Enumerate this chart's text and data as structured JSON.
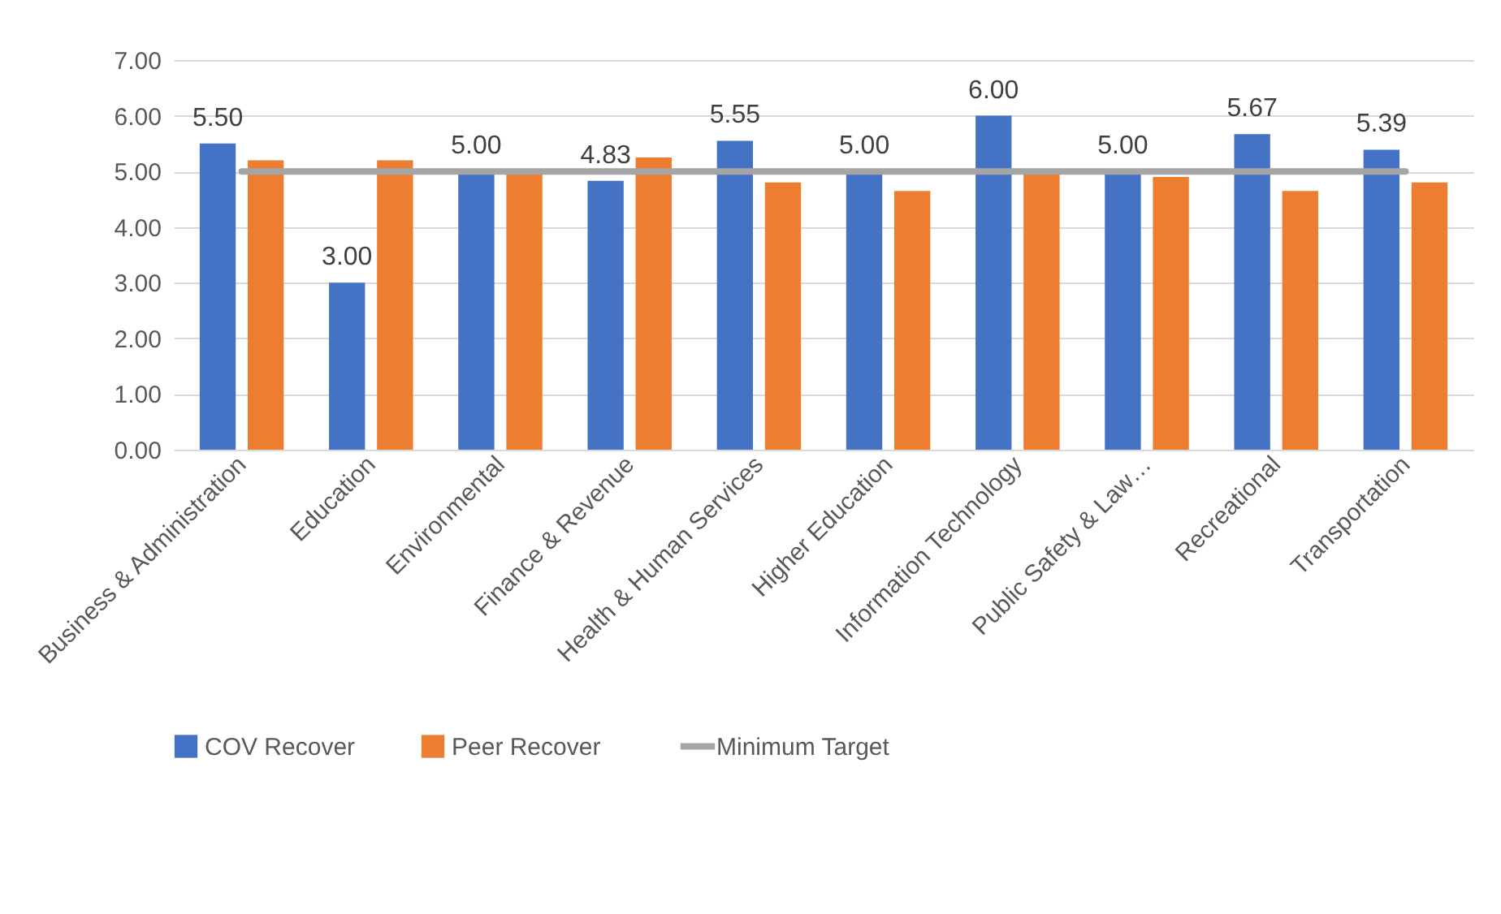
{
  "chart_data": {
    "type": "bar",
    "categories": [
      "Business & Administration",
      "Education",
      "Environmental",
      "Finance & Revenue",
      "Health & Human Services",
      "Higher Education",
      "Information Technology",
      "Public Safety & Law…",
      "Recreational",
      "Transportation"
    ],
    "series": [
      {
        "name": "COV Recover",
        "color": "#4472c4",
        "values": [
          5.5,
          3.0,
          5.0,
          4.83,
          5.55,
          5.0,
          6.0,
          5.0,
          5.67,
          5.39
        ],
        "value_labels": [
          "5.50",
          "3.00",
          "5.00",
          "4.83",
          "5.55",
          "5.00",
          "6.00",
          "5.00",
          "5.67",
          "5.39"
        ]
      },
      {
        "name": "Peer Recover",
        "color": "#ed7d31",
        "values": [
          5.2,
          5.2,
          5.0,
          5.25,
          4.8,
          4.65,
          5.0,
          4.9,
          4.65,
          4.8
        ]
      },
      {
        "name": "Minimum Target",
        "type": "line",
        "color": "#a5a5a5",
        "values": [
          5,
          5,
          5,
          5,
          5,
          5,
          5,
          5,
          5,
          5
        ]
      }
    ],
    "ylim": [
      0,
      7
    ],
    "yticks": [
      {
        "value": 0,
        "label": "0.00"
      },
      {
        "value": 1,
        "label": "1.00"
      },
      {
        "value": 2,
        "label": "2.00"
      },
      {
        "value": 3,
        "label": "3.00"
      },
      {
        "value": 4,
        "label": "4.00"
      },
      {
        "value": 5,
        "label": "5.00"
      },
      {
        "value": 6,
        "label": "6.00"
      },
      {
        "value": 7,
        "label": "7.00"
      }
    ],
    "grid": "y",
    "legend": "bottom"
  }
}
